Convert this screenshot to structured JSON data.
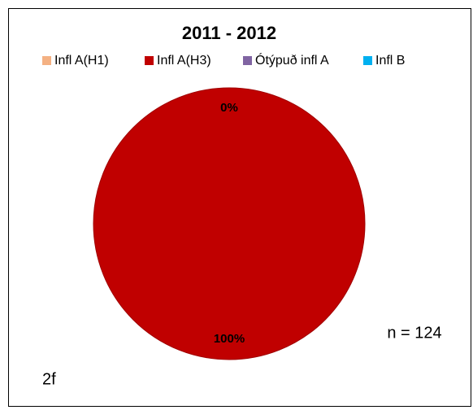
{
  "chart_data": {
    "type": "pie",
    "title": "2011 - 2012",
    "categories": [
      "Infl A(H1)",
      "Infl A(H3)",
      "Ótýpuð infl A",
      "Infl B"
    ],
    "values": [
      0,
      100,
      0,
      0
    ],
    "value_labels": [
      "0%",
      "100%",
      null,
      null
    ],
    "colors": [
      "#f4b183",
      "#c00000",
      "#8064a2",
      "#00b0f0"
    ],
    "annotations": [
      "n = 124",
      "2f"
    ]
  }
}
